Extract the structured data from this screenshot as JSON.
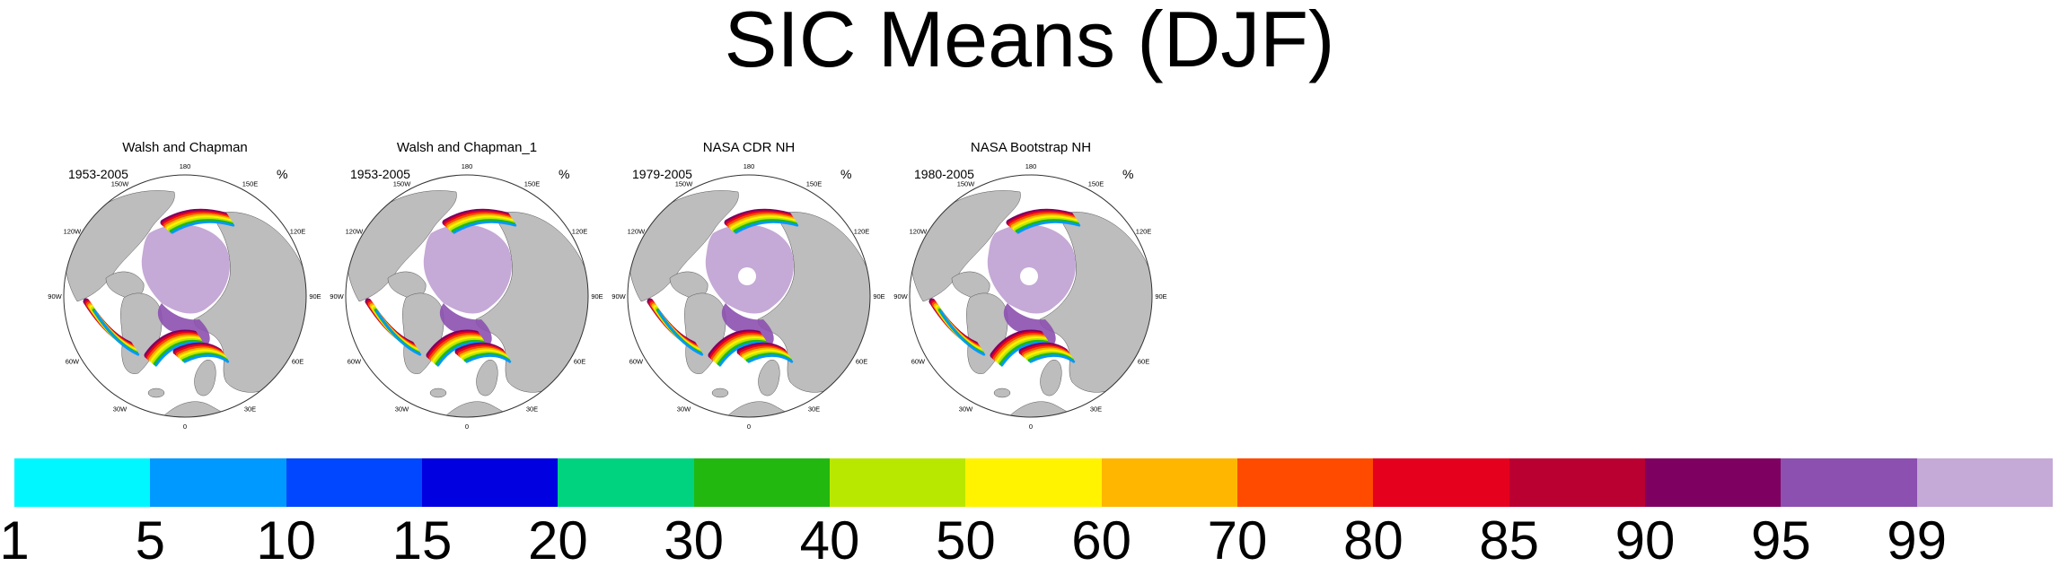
{
  "title": "SIC Means (DJF)",
  "panels": [
    {
      "title": "Walsh and Chapman",
      "period": "1953-2005",
      "unit": "%",
      "pole_hole": false
    },
    {
      "title": "Walsh and Chapman_1",
      "period": "1953-2005",
      "unit": "%",
      "pole_hole": false
    },
    {
      "title": "NASA CDR NH",
      "period": "1979-2005",
      "unit": "%",
      "pole_hole": true
    },
    {
      "title": "NASA Bootstrap NH",
      "period": "1980-2005",
      "unit": "%",
      "pole_hole": true
    }
  ],
  "longitude_labels": [
    "180",
    "150E",
    "120E",
    "90E",
    "60E",
    "30E",
    "0",
    "30W",
    "60W",
    "90W",
    "120W",
    "150W"
  ],
  "colorbar": {
    "colors": [
      "#00f7ff",
      "#0099ff",
      "#0047ff",
      "#0000e0",
      "#00d37f",
      "#22b810",
      "#b9e800",
      "#fff300",
      "#ffb600",
      "#ff4b00",
      "#e5001d",
      "#b90030",
      "#7e0060",
      "#8c50b0",
      "#c5a9d6"
    ],
    "tick_labels": [
      "1",
      "5",
      "10",
      "15",
      "20",
      "30",
      "40",
      "50",
      "60",
      "70",
      "80",
      "85",
      "90",
      "95",
      "99"
    ]
  },
  "colors": {
    "land": "#bdbdbd",
    "ocean": "#ffffff",
    "sea_ice_core": "#c5a9d6",
    "outline": "#555555"
  }
}
